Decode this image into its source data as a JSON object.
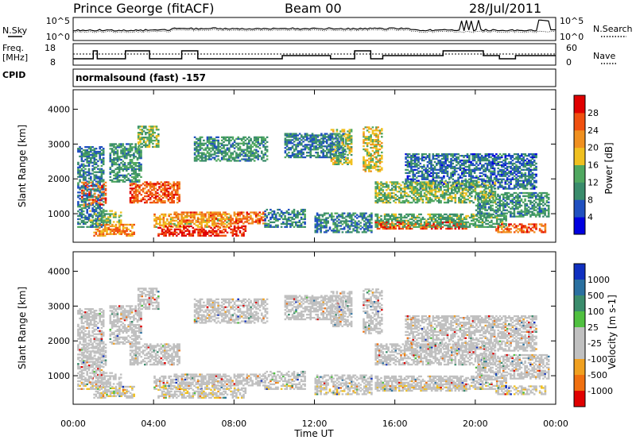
{
  "header": {
    "station": "Prince George (fitACF)",
    "beam": "Beam 00",
    "date": "28/Jul/2011"
  },
  "panel_labels": {
    "nsky": "N.Sky",
    "nsearch": "N.Search",
    "freq": "Freq.",
    "freq_unit": "[MHz]",
    "nave": "Nave",
    "cpid": "CPID",
    "program": "normalsound (fast) -157"
  },
  "noise_axis": {
    "left_ticks": [
      "10^5",
      "10^0"
    ],
    "right_ticks": [
      "10^5",
      "10^0"
    ]
  },
  "freq_axis": {
    "left_ticks": [
      "18",
      "8"
    ],
    "right_ticks": [
      "60",
      "0"
    ]
  },
  "colors": {
    "power_scale": [
      "#0000e0",
      "#2050c0",
      "#3a8c6c",
      "#50a860",
      "#f0c020",
      "#f09020",
      "#f05010",
      "#e00000"
    ],
    "velocity_scale": [
      "#1030c0",
      "#2a70a0",
      "#3a8c6c",
      "#50c040",
      "#c0c0c0",
      "#c0c0c0",
      "#f0a020",
      "#f07010",
      "#e00000"
    ]
  },
  "chart_data": [
    {
      "type": "heatmap",
      "name": "power",
      "x_ticks": [
        "00:00",
        "04:00",
        "08:00",
        "12:00",
        "16:00",
        "20:00",
        "00:00"
      ],
      "xlim": [
        0,
        24
      ],
      "ylabel": "Slant Range [km]",
      "y_ticks": [
        1000,
        2000,
        3000,
        4000
      ],
      "ylim": [
        180,
        4560
      ],
      "colorbar_label": "Power [dB]",
      "colorbar_ticks": [
        4,
        8,
        12,
        16,
        20,
        24,
        28
      ],
      "colorbar_range": [
        0,
        32
      ]
    },
    {
      "type": "heatmap",
      "name": "velocity",
      "x_ticks": [
        "00:00",
        "04:00",
        "08:00",
        "12:00",
        "16:00",
        "20:00",
        "00:00"
      ],
      "xlim": [
        0,
        24
      ],
      "xlabel": "Time UT",
      "ylabel": "Slant Range [km]",
      "y_ticks": [
        1000,
        2000,
        3000,
        4000
      ],
      "ylim": [
        180,
        4560
      ],
      "colorbar_label": "Velocity [m s-1]",
      "colorbar_ticks": [
        1000,
        500,
        100,
        25,
        -25,
        -100,
        -500,
        -1000
      ]
    }
  ]
}
